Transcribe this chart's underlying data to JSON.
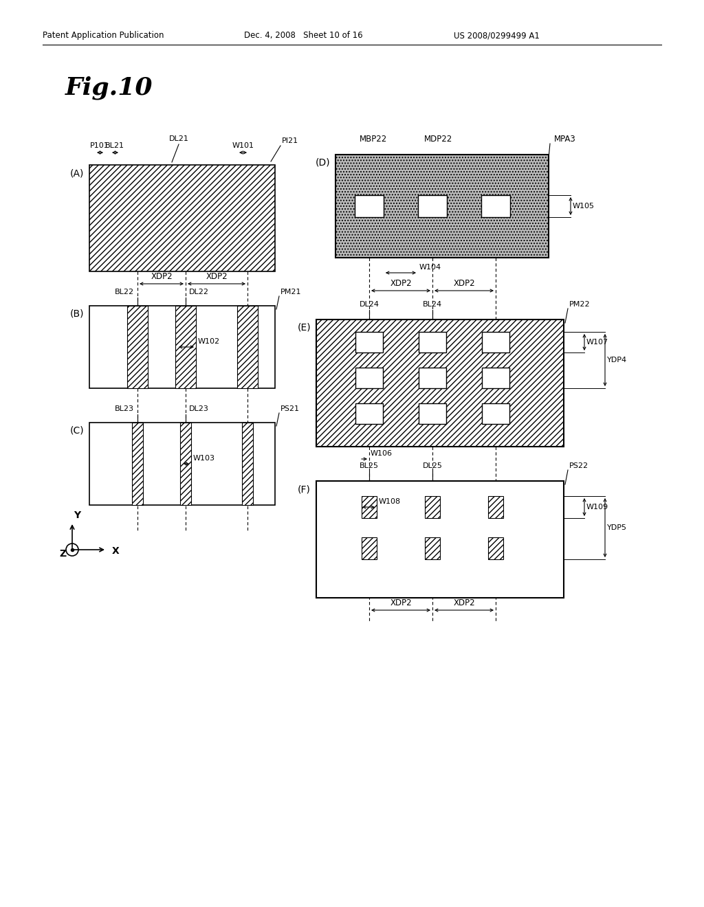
{
  "header_left": "Patent Application Publication",
  "header_mid": "Dec. 4, 2008   Sheet 10 of 16",
  "header_right": "US 2008/0299499 A1",
  "fig_title": "Fig.10",
  "bg_color": "#ffffff"
}
